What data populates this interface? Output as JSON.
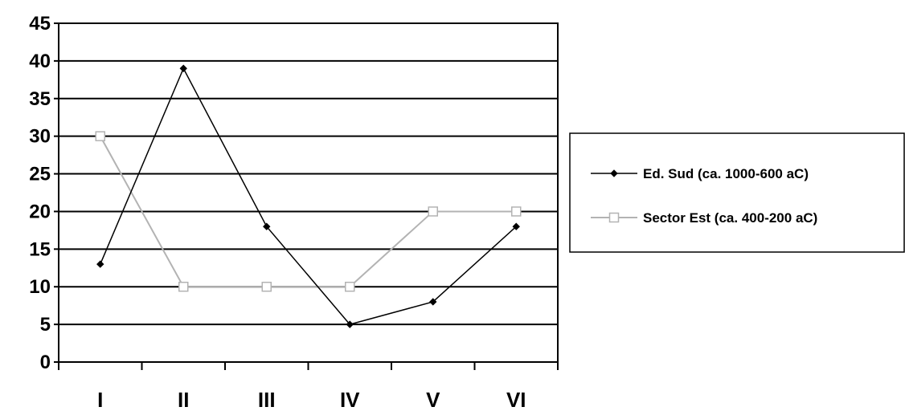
{
  "chart_data": {
    "type": "line",
    "categories": [
      "I",
      "II",
      "III",
      "IV",
      "V",
      "VI"
    ],
    "series": [
      {
        "name": "Ed. Sud (ca. 1000-600 aC)",
        "values": [
          13,
          39,
          18,
          5,
          8,
          18
        ],
        "color": "#000000",
        "marker": "diamond"
      },
      {
        "name": "Sector Est (ca. 400-200 aC)",
        "values": [
          30,
          10,
          10,
          10,
          20,
          20
        ],
        "color": "#b3b3b3",
        "marker": "square"
      }
    ],
    "yticks": [
      "0",
      "5",
      "10",
      "15",
      "20",
      "25",
      "30",
      "35",
      "40",
      "45"
    ],
    "ylim": [
      0,
      45
    ],
    "grid": true,
    "legend_position": "right"
  }
}
